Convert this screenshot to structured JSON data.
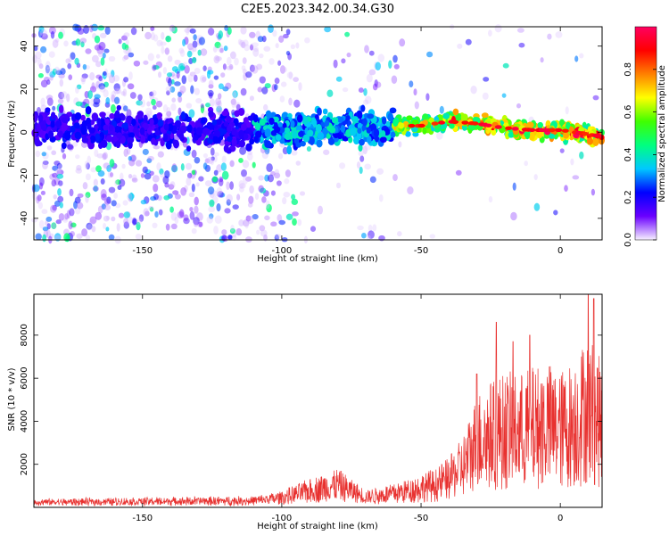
{
  "title": "C2E5.2023.342.00.34.G30",
  "chart_data": [
    {
      "type": "heatmap",
      "xlabel": "Height of straight line (km)",
      "ylabel": "Frequency (Hz)",
      "xlim": [
        -189,
        15
      ],
      "ylim": [
        -50,
        49
      ],
      "xticks": [
        -150,
        -100,
        -50,
        0
      ],
      "yticks": [
        -40,
        -20,
        0,
        20,
        40
      ],
      "colorbar": {
        "label": "Normalized spectral amplitude",
        "ticks": [
          0.0,
          0.2,
          0.4,
          0.6,
          0.8
        ],
        "range": [
          0.0,
          1.0
        ],
        "colormap": [
          "#f7f0ff",
          "#6a00ff",
          "#0000ff",
          "#00c8ff",
          "#00ff80",
          "#40ff00",
          "#ffff00",
          "#ff8000",
          "#ff0000",
          "#ff0060"
        ]
      },
      "ridge": {
        "x": [
          -189,
          -150,
          -100,
          -80,
          -60,
          -50,
          -40,
          -30,
          -20,
          -10,
          0,
          15
        ],
        "y": [
          2,
          1,
          1,
          2,
          3,
          3,
          5,
          4,
          2,
          1,
          1,
          -2
        ]
      }
    },
    {
      "type": "line",
      "xlabel": "Height of straight line (km)",
      "ylabel": "SNR (10 * v/v)",
      "xlim": [
        -189,
        15
      ],
      "ylim": [
        0,
        9900
      ],
      "xticks": [
        -150,
        -100,
        -50,
        0
      ],
      "yticks": [
        2000,
        4000,
        6000,
        8000
      ],
      "color": "#e8312f",
      "envelope": {
        "x": [
          -189,
          -150,
          -110,
          -100,
          -90,
          -80,
          -75,
          -70,
          -65,
          -55,
          -50,
          -45,
          -40,
          -35,
          -30,
          -25,
          -20,
          -15,
          -10,
          -5,
          0,
          5,
          10,
          15
        ],
        "y": [
          250,
          300,
          350,
          550,
          1000,
          1400,
          1000,
          600,
          700,
          1000,
          1200,
          1400,
          1800,
          2600,
          4200,
          4700,
          5000,
          4900,
          5200,
          5400,
          5000,
          5500,
          6500,
          5400
        ]
      },
      "peaks": [
        {
          "x": -30,
          "y": 6200
        },
        {
          "x": -23,
          "y": 8600
        },
        {
          "x": -17,
          "y": 7700
        },
        {
          "x": -11,
          "y": 8000
        },
        {
          "x": 10,
          "y": 9900
        },
        {
          "x": 12,
          "y": 9700
        }
      ]
    }
  ]
}
